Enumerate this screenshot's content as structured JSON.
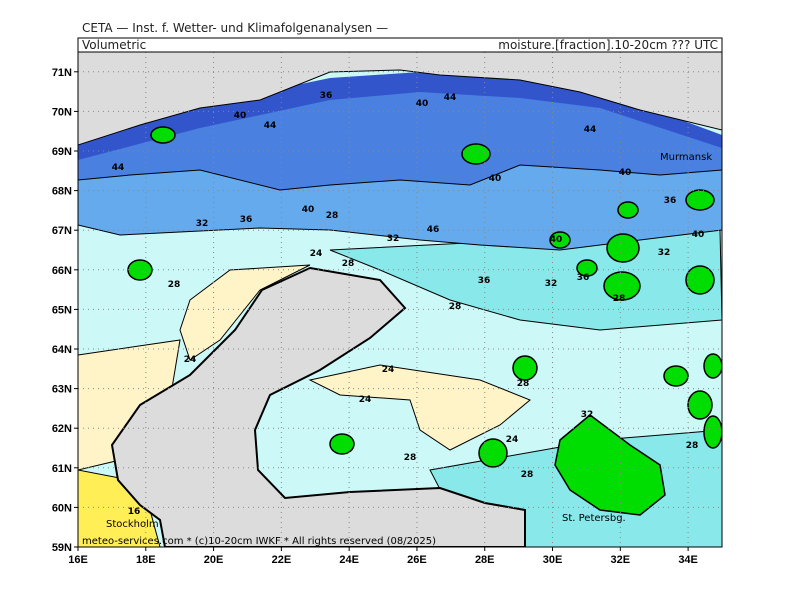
{
  "header": {
    "institute": "CETA — Inst. f. Wetter- und Klimafolgenanalysen —",
    "left": "Volumetric",
    "right": "moisture.[fraction].10-20cm ??? UTC",
    "footer": "meteo-services.com * (c)10-20cm IWKF * All rights reserved (08/2025)"
  },
  "map": {
    "lon_range": [
      16,
      35
    ],
    "lat_range": [
      59,
      71.5
    ],
    "lat_ticks": [
      {
        "value": 71,
        "label": "71N"
      },
      {
        "value": 70,
        "label": "70N"
      },
      {
        "value": 69,
        "label": "69N"
      },
      {
        "value": 68,
        "label": "68N"
      },
      {
        "value": 67,
        "label": "67N"
      },
      {
        "value": 66,
        "label": "66N"
      },
      {
        "value": 65,
        "label": "65N"
      },
      {
        "value": 64,
        "label": "64N"
      },
      {
        "value": 63,
        "label": "63N"
      },
      {
        "value": 62,
        "label": "62N"
      },
      {
        "value": 61,
        "label": "61N"
      },
      {
        "value": 60,
        "label": "60N"
      },
      {
        "value": 59,
        "label": "59N"
      }
    ],
    "lon_ticks": [
      {
        "value": 16,
        "label": "16E"
      },
      {
        "value": 18,
        "label": "18E"
      },
      {
        "value": 20,
        "label": "20E"
      },
      {
        "value": 22,
        "label": "22E"
      },
      {
        "value": 24,
        "label": "24E"
      },
      {
        "value": 26,
        "label": "26E"
      },
      {
        "value": 28,
        "label": "28E"
      },
      {
        "value": 30,
        "label": "30E"
      },
      {
        "value": 32,
        "label": "32E"
      },
      {
        "value": 34,
        "label": "34E"
      }
    ],
    "places": [
      "Murmansk",
      "Stockholm",
      "St. Petersbg."
    ],
    "contour_labels": [
      40,
      44,
      36,
      40,
      44,
      44,
      44,
      40,
      40,
      36,
      40,
      28,
      32,
      36,
      46,
      40,
      40,
      32,
      24,
      28,
      28,
      36,
      32,
      28,
      36,
      28,
      32,
      24,
      24,
      24,
      28,
      32,
      24,
      28,
      28,
      28,
      16
    ]
  }
}
